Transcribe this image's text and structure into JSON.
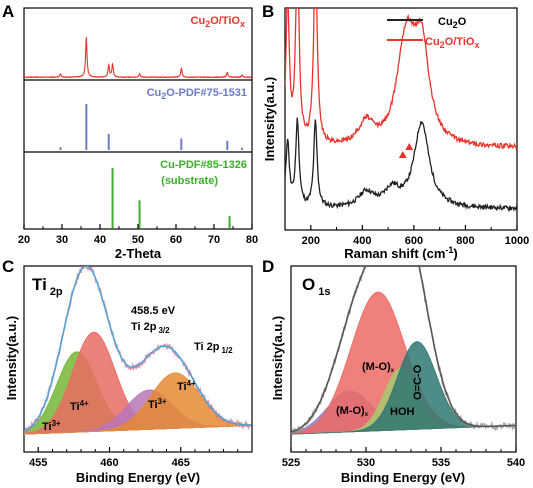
{
  "chart_data": [
    {
      "panel": "A",
      "type": "line",
      "xlabel": "2-Theta",
      "xlim": [
        20,
        80
      ],
      "xticks": [
        20,
        30,
        40,
        50,
        60,
        70,
        80
      ],
      "sub_panels": [
        {
          "name": "Cu2O/TiOx",
          "label_main": "Cu",
          "label_sub1": "2",
          "label_mid": "O/TiO",
          "label_sub2": "x",
          "color": "#e8342c",
          "kind": "pattern",
          "peaks": [
            {
              "x": 29.6,
              "h": 0.08
            },
            {
              "x": 36.4,
              "h": 1.0
            },
            {
              "x": 42.3,
              "h": 0.3
            },
            {
              "x": 43.3,
              "h": 0.32
            },
            {
              "x": 50.4,
              "h": 0.08
            },
            {
              "x": 61.4,
              "h": 0.22
            },
            {
              "x": 73.5,
              "h": 0.12
            },
            {
              "x": 77.4,
              "h": 0.05
            }
          ]
        },
        {
          "name": "Cu2O-PDF#75-1531",
          "label_main": "Cu",
          "label_sub1": "2",
          "label_mid": "O-PDF#75-1531",
          "label_sub2": "",
          "color": "#6c7bc9",
          "kind": "sticks",
          "sticks": [
            {
              "x": 29.6,
              "h": 0.06
            },
            {
              "x": 36.4,
              "h": 1.0
            },
            {
              "x": 42.3,
              "h": 0.35
            },
            {
              "x": 61.4,
              "h": 0.25
            },
            {
              "x": 73.5,
              "h": 0.2
            },
            {
              "x": 77.4,
              "h": 0.05
            }
          ]
        },
        {
          "name": "Cu-PDF#85-1326 (substrate)",
          "label_main": "Cu-PDF#85-1326",
          "label_line2": "(substrate)",
          "color": "#3cae2a",
          "kind": "sticks",
          "sticks": [
            {
              "x": 43.3,
              "h": 1.0
            },
            {
              "x": 50.4,
              "h": 0.46
            },
            {
              "x": 74.1,
              "h": 0.2
            }
          ]
        }
      ]
    },
    {
      "panel": "B",
      "type": "line",
      "xlabel": "Raman shift (cm",
      "xlabel_sup": "-1",
      "xlabel_end": ")",
      "ylabel": "Intensity(a.u.)",
      "xlim": [
        100,
        1000
      ],
      "xticks": [
        200,
        400,
        600,
        800,
        1000
      ],
      "legend_position": "top-right",
      "series": [
        {
          "name": "Cu2O",
          "legend_main": "Cu",
          "legend_sub1": "2",
          "legend_mid": "O",
          "legend_sub2": "",
          "color": "#222222",
          "baseline": 0.1,
          "peaks": [
            {
              "x": 110,
              "h": 0.35
            },
            {
              "x": 148,
              "h": 0.45
            },
            {
              "x": 218,
              "h": 0.45
            },
            {
              "x": 415,
              "h": 0.08
            },
            {
              "x": 515,
              "h": 0.09
            },
            {
              "x": 630,
              "h": 0.45
            }
          ]
        },
        {
          "name": "Cu2O/TiOx",
          "legend_main": "Cu",
          "legend_sub1": "2",
          "legend_mid": "O/TiO",
          "legend_sub2": "x",
          "color": "#e8342c",
          "baseline": 0.42,
          "peaks": [
            {
              "x": 110,
              "h": 0.75
            },
            {
              "x": 148,
              "h": 1.0
            },
            {
              "x": 218,
              "h": 1.03
            },
            {
              "x": 415,
              "h": 0.12
            },
            {
              "x": 555,
              "h": 0.25
            },
            {
              "x": 580,
              "h": 0.35
            },
            {
              "x": 630,
              "h": 0.5
            }
          ]
        }
      ],
      "markers": [
        {
          "x": 557,
          "series": "Cu2O/TiOx"
        },
        {
          "x": 582,
          "series": "Cu2O/TiOx"
        }
      ]
    },
    {
      "panel": "C",
      "type": "area",
      "title_main": "Ti",
      "title_sub": "2p",
      "xlabel": "Binding Energy (eV)",
      "ylabel": "Intensity(a.u.)",
      "xlim": [
        454,
        470
      ],
      "xticks": [
        455,
        460,
        465
      ],
      "annotations": {
        "energy": "458.5 eV",
        "ti2p32_main": "Ti 2p",
        "ti2p32_sub": "3/2",
        "ti2p12_main": "Ti 2p",
        "ti2p12_sub": "1/2"
      },
      "components": [
        {
          "label_main": "Ti",
          "label_sup": "3+",
          "center": 457.7,
          "width": 1.4,
          "height": 0.55,
          "color": "#74b636"
        },
        {
          "label_main": "Ti",
          "label_sup": "4+",
          "center": 458.9,
          "width": 1.5,
          "height": 0.68,
          "color": "#e96b63"
        },
        {
          "label_main": "Ti",
          "label_sup": "3+",
          "center": 462.8,
          "width": 1.6,
          "height": 0.27,
          "color": "#b876b8"
        },
        {
          "label_main": "Ti",
          "label_sup": "4+",
          "center": 464.6,
          "width": 1.7,
          "height": 0.38,
          "color": "#e58a34"
        }
      ]
    },
    {
      "panel": "D",
      "type": "area",
      "title_main": "O",
      "title_sub": "1s",
      "xlabel": "Binding Energy (eV)",
      "ylabel": "Intensity(a.u.)",
      "xlim": [
        525,
        540
      ],
      "xticks": [
        525,
        530,
        535,
        540
      ],
      "components": [
        {
          "label_main": "(M-O)",
          "label_sub": "x",
          "center": 528.9,
          "width": 1.5,
          "height": 0.28,
          "color": "#8e7dc4"
        },
        {
          "label_main": "(M-O)",
          "label_sub": "x",
          "center": 530.8,
          "width": 1.8,
          "height": 0.95,
          "color": "#ec6a64"
        },
        {
          "label_main": "HOH",
          "label_sub": "",
          "center": 532.3,
          "width": 1.1,
          "height": 0.42,
          "color": "#a9c86f"
        },
        {
          "label_main": "O=C-O",
          "label_sub": "",
          "center": 533.4,
          "width": 1.3,
          "height": 0.6,
          "color": "#2f7872"
        }
      ]
    }
  ]
}
